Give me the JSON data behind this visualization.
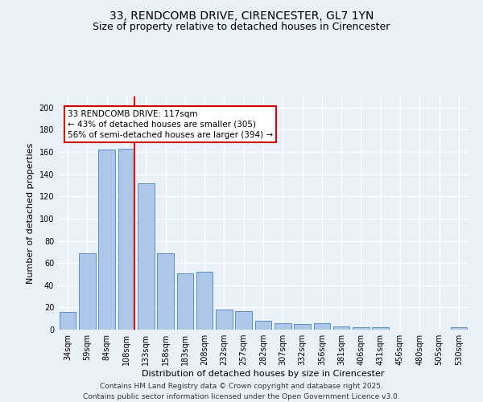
{
  "title": "33, RENDCOMB DRIVE, CIRENCESTER, GL7 1YN",
  "subtitle": "Size of property relative to detached houses in Cirencester",
  "xlabel": "Distribution of detached houses by size in Cirencester",
  "ylabel": "Number of detached properties",
  "categories": [
    "34sqm",
    "59sqm",
    "84sqm",
    "108sqm",
    "133sqm",
    "158sqm",
    "183sqm",
    "208sqm",
    "232sqm",
    "257sqm",
    "282sqm",
    "307sqm",
    "332sqm",
    "356sqm",
    "381sqm",
    "406sqm",
    "431sqm",
    "456sqm",
    "480sqm",
    "505sqm",
    "530sqm"
  ],
  "values": [
    16,
    69,
    162,
    163,
    132,
    69,
    51,
    52,
    18,
    17,
    8,
    6,
    5,
    6,
    3,
    2,
    2,
    0,
    0,
    0,
    2
  ],
  "bar_color": "#aec6e8",
  "bar_edge_color": "#5b8fc4",
  "marker_bin_index": 3,
  "marker_color": "#cc0000",
  "annotation_text": "33 RENDCOMB DRIVE: 117sqm\n← 43% of detached houses are smaller (305)\n56% of semi-detached houses are larger (394) →",
  "annotation_box_color": "#ffffff",
  "annotation_box_edge": "#cc0000",
  "ylim": [
    0,
    210
  ],
  "yticks": [
    0,
    20,
    40,
    60,
    80,
    100,
    120,
    140,
    160,
    180,
    200
  ],
  "footer_line1": "Contains HM Land Registry data © Crown copyright and database right 2025.",
  "footer_line2": "Contains public sector information licensed under the Open Government Licence v3.0.",
  "bg_color": "#eaf0f8",
  "plot_bg_color": "#eaf0f8",
  "grid_color": "#ffffff",
  "title_fontsize": 10,
  "subtitle_fontsize": 9,
  "axis_label_fontsize": 8,
  "tick_fontsize": 7,
  "annotation_fontsize": 7.5,
  "footer_fontsize": 6.5
}
